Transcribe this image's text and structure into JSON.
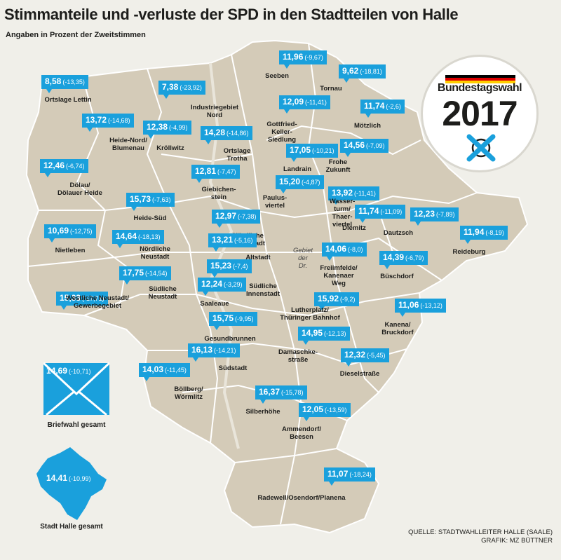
{
  "title": "Stimmanteile und -verluste der SPD in den Stadtteilen von Halle",
  "subtitle": "Angaben in Prozent der Zweitstimmen",
  "source_line1": "QUELLE:  STADTWAHLLEITER HALLE (SAALE)",
  "source_line2": "GRAFIK: MZ BÜTTNER",
  "logo": {
    "word": "Bundestagswahl",
    "year": "2017",
    "icon": "ballot-cross-icon"
  },
  "colors": {
    "badge": "#1aa0dc",
    "land": "#d4cbb8",
    "border": "#ffffff",
    "background": "#f0efe9"
  },
  "briefwahl": {
    "value": "14,69",
    "change": "(-10,71)",
    "label": "Briefwahl gesamt",
    "icon": "envelope-icon"
  },
  "stadt": {
    "value": "14,41",
    "change": "(-10,99)",
    "label": "Stadt Halle gesamt",
    "icon": "city-outline-icon"
  },
  "gebiet_label": "Gebiet\nder\nDr.",
  "districts": [
    {
      "value": "8,58",
      "change": "(-13,35)",
      "name": "Ortslage Lettin"
    },
    {
      "value": "7,38",
      "change": "(-23,92)",
      "name": "Industriegebiet\nNord"
    },
    {
      "value": "11,96",
      "change": "(-9,67)",
      "name": "Seeben"
    },
    {
      "value": "9,62",
      "change": "(-18,81)",
      "name": "Tornau"
    },
    {
      "value": "13,72",
      "change": "(-14,68)",
      "name": "Heide-Nord/\nBlumenau"
    },
    {
      "value": "12,38",
      "change": "(-4,99)",
      "name": "Kröllwitz"
    },
    {
      "value": "14,28",
      "change": "(-14,86)",
      "name": "Ortslage\nTrotha"
    },
    {
      "value": "12,09",
      "change": "(-11,41)",
      "name": "Gottfried-\nKeller-\nSiedlung"
    },
    {
      "value": "11,74",
      "change": "(-2,6)",
      "name": "Mötzlich"
    },
    {
      "value": "12,46",
      "change": "(-6,74)",
      "name": "Dölau/\nDölauer Heide"
    },
    {
      "value": "12,81",
      "change": "(-7,47)",
      "name": "Giebichen-\nstein"
    },
    {
      "value": "17,05",
      "change": "(-10,21)",
      "name": "Landrain"
    },
    {
      "value": "14,56",
      "change": "(-7,09)",
      "name": "Frohe\nZukunft"
    },
    {
      "value": "15,20",
      "change": "(-4,87)",
      "name": "Paulus-\nviertel"
    },
    {
      "value": "13,92",
      "change": "(-11,41)",
      "name": "Wasser-\nturm/\nThaer-\nviertel"
    },
    {
      "value": "15,73",
      "change": "(-7,63)",
      "name": "Heide-Süd"
    },
    {
      "value": "11,74",
      "change": "(-11,09)",
      "name": "Diemitz"
    },
    {
      "value": "12,23",
      "change": "(-7,89)",
      "name": "Dautzsch"
    },
    {
      "value": "11,94",
      "change": "(-8,19)",
      "name": "Reideburg"
    },
    {
      "value": "12,97",
      "change": "(-7,38)",
      "name": "Nördliche\nInnenstadt"
    },
    {
      "value": "10,69",
      "change": "(-12,75)",
      "name": "Nietleben"
    },
    {
      "value": "14,64",
      "change": "(-18,13)",
      "name": "Nördliche\nNeustadt"
    },
    {
      "value": "13,21",
      "change": "(-5,16)",
      "name": "Altstadt"
    },
    {
      "value": "14,06",
      "change": "(-8,0)",
      "name": "Freiimfelde/\nKanenaer\nWeg"
    },
    {
      "value": "14,39",
      "change": "(-6,79)",
      "name": "Büschdorf"
    },
    {
      "value": "17,75",
      "change": "(-14,54)",
      "name": "Südliche\nNeustadt"
    },
    {
      "value": "15,23",
      "change": "(-7,4)",
      "name": "Südliche\nInnenstadt"
    },
    {
      "value": "15,33",
      "change": "(-17,71)",
      "name": "Westliche Neustadt/\nGewerbegebiet"
    },
    {
      "value": "12,24",
      "change": "(-3,29)",
      "name": "Saaleaue"
    },
    {
      "value": "15,92",
      "change": "(-9,2)",
      "name": "Lutherplatz/\nThüringer Bahnhof"
    },
    {
      "value": "11,06",
      "change": "(-13,12)",
      "name": "Kanena/\nBruckdorf"
    },
    {
      "value": "15,75",
      "change": "(-9,95)",
      "name": "Gesundbrunnen"
    },
    {
      "value": "14,95",
      "change": "(-12,13)",
      "name": "Damaschke-\nstraße"
    },
    {
      "value": "16,13",
      "change": "(-14,21)",
      "name": "Südstadt"
    },
    {
      "value": "12,32",
      "change": "(-5,45)",
      "name": "Dieselstraße"
    },
    {
      "value": "14,03",
      "change": "(-11,45)",
      "name": "Böllberg/\nWörmlitz"
    },
    {
      "value": "16,37",
      "change": "(-15,78)",
      "name": "Silberhöhe"
    },
    {
      "value": "12,05",
      "change": "(-13,59)",
      "name": "Ammendorf/\nBeesen"
    },
    {
      "value": "11,07",
      "change": "(-18,24)",
      "name": "Radewell/Osendorf/Planena"
    }
  ]
}
